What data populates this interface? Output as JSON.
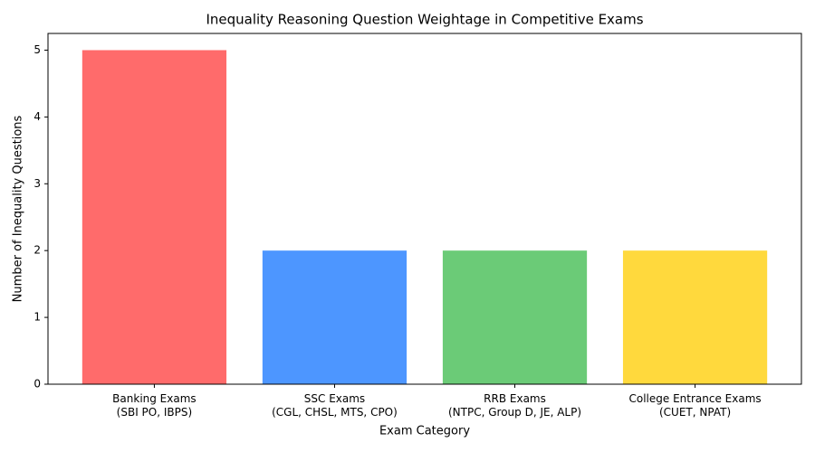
{
  "chart_data": {
    "type": "bar",
    "title": "Inequality Reasoning Question Weightage in Competitive Exams",
    "x_label": "Exam Category",
    "y_label": "Number of Inequality Questions",
    "categories": [
      "Banking Exams\n(SBI PO, IBPS)",
      "SSC Exams\n(CGL, CHSL, MTS, CPO)",
      "RRB Exams\n(NTPC, Group D, JE, ALP)",
      "College Entrance Exams\n(CUET, NPAT)"
    ],
    "values": [
      5,
      2,
      2,
      2
    ],
    "colors": [
      "#ff6b6b",
      "#4d96ff",
      "#6bcb77",
      "#ffd93d"
    ],
    "ylim": [
      0,
      5.25
    ],
    "yticks": [
      0,
      1,
      2,
      3,
      4,
      5
    ],
    "grid": false
  }
}
